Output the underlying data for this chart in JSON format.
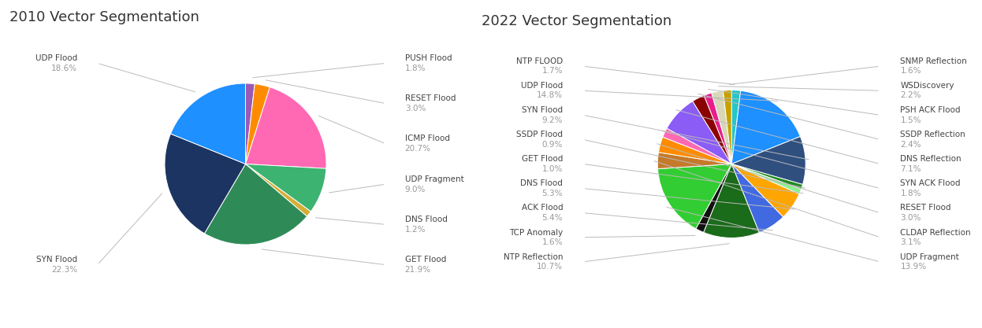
{
  "title1": "2010 Vector Segmentation",
  "title2": "2022 Vector Segmentation",
  "chart1": {
    "labels": [
      "PUSH Flood",
      "RESET Flood",
      "ICMP Flood",
      "UDP Fragment",
      "DNS Flood",
      "GET Flood",
      "SYN Flood",
      "UDP Flood"
    ],
    "values": [
      1.8,
      3.0,
      20.7,
      9.0,
      1.2,
      21.9,
      22.3,
      18.6
    ],
    "colors": [
      "#9B59B6",
      "#FF8C00",
      "#FF69B4",
      "#3CB371",
      "#D4AF37",
      "#2E8B57",
      "#1C3461",
      "#1E90FF"
    ],
    "side": [
      "right",
      "right",
      "right",
      "right",
      "right",
      "right",
      "left",
      "left"
    ]
  },
  "chart2": {
    "labels": [
      "NTP FLOOD",
      "UDP Flood",
      "SYN Flood",
      "SSDP Flood",
      "GET Flood",
      "DNS Flood",
      "ACK Flood",
      "NTP Reflection",
      "TCP Anomaly",
      "UDP Fragment",
      "CLDAP Reflection",
      "RESET Flood",
      "SYN ACK Flood",
      "DNS Reflection",
      "SSDP Reflection",
      "PSH ACK Flood",
      "WSDiscovery",
      "SNMP Reflection"
    ],
    "values": [
      1.7,
      14.8,
      9.2,
      0.9,
      1.0,
      5.3,
      5.4,
      10.7,
      1.6,
      13.9,
      3.1,
      3.0,
      1.8,
      7.1,
      2.4,
      1.5,
      2.2,
      1.6
    ],
    "colors": [
      "#26C6C6",
      "#1E90FF",
      "#2F4F7F",
      "#228B22",
      "#90EE90",
      "#FFA500",
      "#4169E1",
      "#1A6B1A",
      "#111111",
      "#32CD32",
      "#C47A2A",
      "#FF8C00",
      "#FF69B4",
      "#8B5CF6",
      "#8B0000",
      "#E91E8C",
      "#D8D8B8",
      "#C8A000"
    ],
    "side": [
      "left",
      "left",
      "left",
      "left",
      "left",
      "left",
      "left",
      "left",
      "left",
      "right",
      "right",
      "right",
      "right",
      "right",
      "right",
      "right",
      "right",
      "right"
    ]
  },
  "bg_color": "#ffffff",
  "title_fontsize": 13,
  "label_fontsize": 7.5,
  "label_color": "#444444",
  "pct_color": "#999999"
}
